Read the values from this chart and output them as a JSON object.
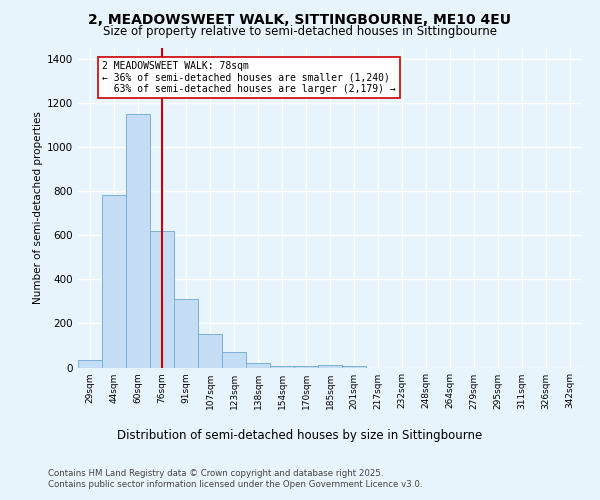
{
  "title": "2, MEADOWSWEET WALK, SITTINGBOURNE, ME10 4EU",
  "subtitle": "Size of property relative to semi-detached houses in Sittingbourne",
  "xlabel": "Distribution of semi-detached houses by size in Sittingbourne",
  "ylabel": "Number of semi-detached properties",
  "categories": [
    "29sqm",
    "44sqm",
    "60sqm",
    "76sqm",
    "91sqm",
    "107sqm",
    "123sqm",
    "138sqm",
    "154sqm",
    "170sqm",
    "185sqm",
    "201sqm",
    "217sqm",
    "232sqm",
    "248sqm",
    "264sqm",
    "279sqm",
    "295sqm",
    "311sqm",
    "326sqm",
    "342sqm"
  ],
  "values": [
    35,
    780,
    1150,
    620,
    310,
    150,
    70,
    20,
    8,
    5,
    10,
    5,
    0,
    0,
    0,
    0,
    0,
    0,
    0,
    0,
    0
  ],
  "bar_color": "#c5ddf4",
  "bar_edge_color": "#7ab0d8",
  "highlight_index": 3,
  "highlight_color": "#cc0000",
  "property_label": "2 MEADOWSWEET WALK: 78sqm",
  "smaller_pct": 36,
  "smaller_count": 1240,
  "larger_pct": 63,
  "larger_count": 2179,
  "ylim_max": 1450,
  "yticks": [
    0,
    200,
    400,
    600,
    800,
    1000,
    1200,
    1400
  ],
  "footnote1": "Contains HM Land Registry data © Crown copyright and database right 2025.",
  "footnote2": "Contains public sector information licensed under the Open Government Licence v3.0.",
  "background_color": "#e8f4fc",
  "grid_color": "#ffffff"
}
